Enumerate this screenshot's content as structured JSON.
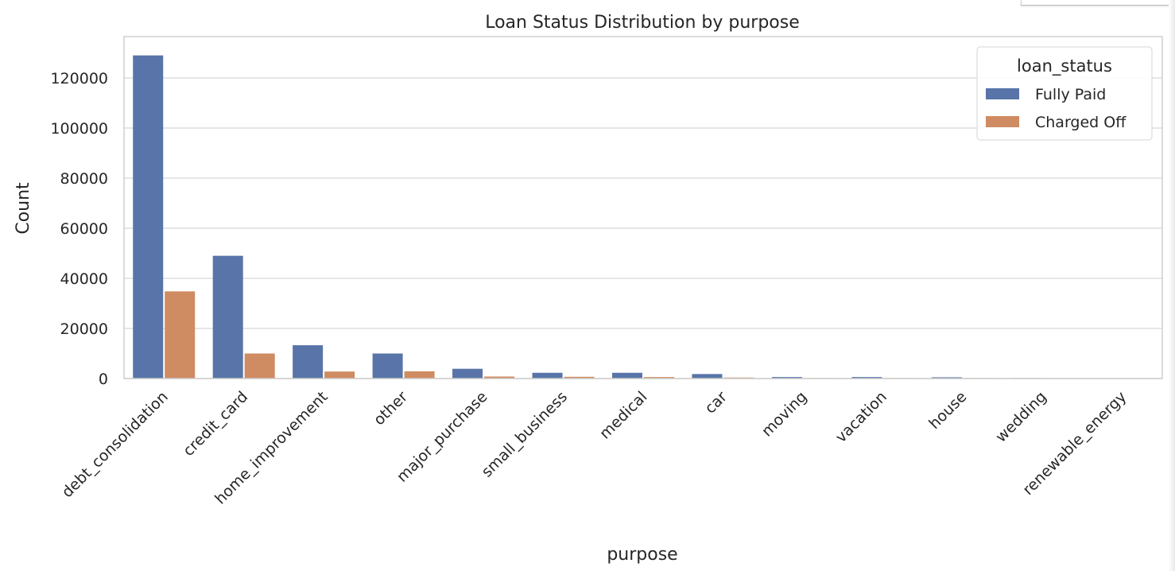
{
  "chart_data": {
    "type": "bar",
    "title": "Loan Status Distribution by purpose",
    "xlabel": "purpose",
    "ylabel": "Count",
    "ylim": [
      0,
      140000
    ],
    "yticks": [
      "0",
      "20000",
      "40000",
      "60000",
      "80000",
      "100000",
      "120000"
    ],
    "ytick_values": [
      0,
      20000,
      40000,
      60000,
      80000,
      100000,
      120000
    ],
    "grid": true,
    "legend": {
      "title": "loan_status",
      "placement": "top-right"
    },
    "categories": [
      "debt_consolidation",
      "credit_card",
      "home_improvement",
      "other",
      "major_purchase",
      "small_business",
      "medical",
      "car",
      "moving",
      "vacation",
      "house",
      "wedding",
      "renewable_energy"
    ],
    "series": [
      {
        "name": "Fully Paid",
        "color": "#5874a8",
        "values": [
          129000,
          49000,
          13300,
          10000,
          3900,
          2300,
          2300,
          1800,
          600,
          600,
          500,
          200,
          100
        ]
      },
      {
        "name": "Charged Off",
        "color": "#cf8b62",
        "values": [
          34800,
          10000,
          2800,
          2900,
          800,
          700,
          600,
          400,
          200,
          200,
          200,
          50,
          50
        ]
      }
    ]
  }
}
